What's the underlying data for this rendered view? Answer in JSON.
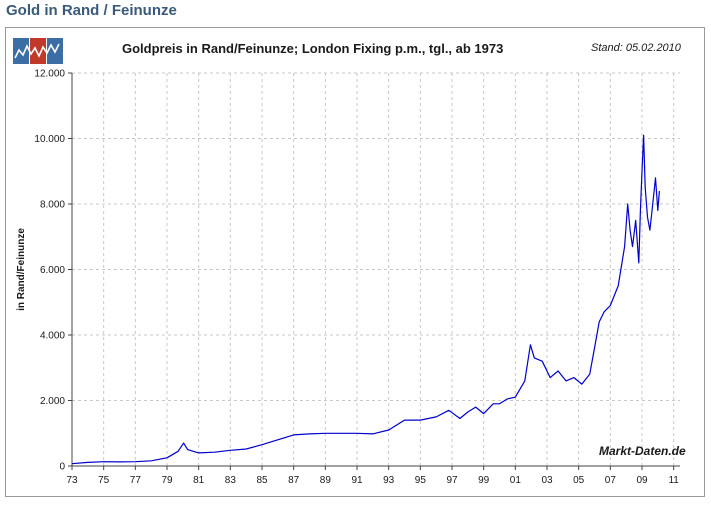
{
  "page": {
    "heading": "Gold in Rand / Feinunze"
  },
  "chart": {
    "title": "Goldpreis in  Rand/Feinunze; London Fixing p.m., tgl., ab 1973",
    "stand": "Stand: 05.02.2010",
    "watermark": "Markt-Daten.de",
    "logo_colors": [
      "#3a6ea5",
      "#c0392b",
      "#3a6ea5"
    ]
  },
  "chart_data": {
    "type": "line",
    "title": "Goldpreis in  Rand/Feinunze; London Fixing p.m., tgl., ab 1973",
    "xlabel": "",
    "ylabel": "in Rand/Feinunze",
    "xlim": [
      1973,
      2011.4
    ],
    "ylim": [
      0,
      12000
    ],
    "x_ticks": [
      1973,
      1975,
      1977,
      1979,
      1981,
      1983,
      1985,
      1987,
      1989,
      1991,
      1993,
      1995,
      1997,
      1999,
      2001,
      2003,
      2005,
      2007,
      2009,
      2011
    ],
    "x_tick_labels": [
      "73",
      "75",
      "77",
      "79",
      "81",
      "83",
      "85",
      "87",
      "89",
      "91",
      "93",
      "95",
      "97",
      "99",
      "01",
      "03",
      "05",
      "07",
      "09",
      "11"
    ],
    "y_ticks": [
      0,
      2000,
      4000,
      6000,
      8000,
      10000,
      12000
    ],
    "y_tick_labels": [
      "0",
      "2.000",
      "4.000",
      "6.000",
      "8.000",
      "10.000",
      "12.000"
    ],
    "grid": true,
    "line_color": "#0000cc",
    "series": [
      {
        "x": [
          1973.0,
          1974.0,
          1975.0,
          1976.0,
          1977.0,
          1978.0,
          1979.0,
          1979.7,
          1980.05,
          1980.3,
          1981.0,
          1982.0,
          1983.0,
          1984.0,
          1985.0,
          1986.0,
          1987.0,
          1988.0,
          1989.0,
          1990.0,
          1991.0,
          1992.0,
          1993.0,
          1994.0,
          1995.0,
          1996.0,
          1996.8,
          1997.5,
          1998.0,
          1998.5,
          1999.0,
          1999.6,
          2000.0,
          2000.5,
          2001.0,
          2001.6,
          2001.95,
          2002.2,
          2002.7,
          2003.2,
          2003.7,
          2004.2,
          2004.7,
          2005.2,
          2005.7,
          2006.0,
          2006.3,
          2006.6,
          2007.0,
          2007.5,
          2007.9,
          2008.1,
          2008.25,
          2008.4,
          2008.6,
          2008.8,
          2008.9,
          2009.0,
          2009.1,
          2009.2,
          2009.35,
          2009.5,
          2009.7,
          2009.85,
          2010.0,
          2010.1
        ],
        "y": [
          70,
          110,
          130,
          125,
          130,
          160,
          250,
          450,
          700,
          500,
          400,
          420,
          480,
          520,
          650,
          800,
          950,
          980,
          1000,
          1000,
          1000,
          980,
          1100,
          1400,
          1400,
          1500,
          1700,
          1450,
          1650,
          1800,
          1600,
          1900,
          1900,
          2050,
          2100,
          2600,
          3700,
          3300,
          3200,
          2700,
          2900,
          2600,
          2700,
          2500,
          2800,
          3600,
          4400,
          4700,
          4900,
          5500,
          6700,
          8000,
          7200,
          6700,
          7500,
          6200,
          7800,
          9000,
          10100,
          8500,
          7600,
          7200,
          8100,
          8800,
          7800,
          8400
        ]
      }
    ]
  }
}
